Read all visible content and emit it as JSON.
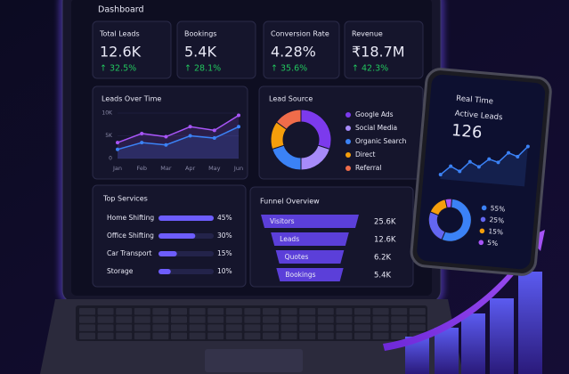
{
  "dashboard": {
    "title": "Dashboard",
    "kpis": [
      {
        "label": "Total Leads",
        "value": "12.6K",
        "change": "↑ 32.5%"
      },
      {
        "label": "Bookings",
        "value": "5.4K",
        "change": "↑ 28.1%"
      },
      {
        "label": "Conversion Rate",
        "value": "4.28%",
        "change": "↑ 35.6%"
      },
      {
        "label": "Revenue",
        "value": "₹18.7M",
        "change": "↑ 42.3%"
      }
    ],
    "leads_over_time": {
      "type": "line",
      "title": "Leads Over Time",
      "categories": [
        "Jan",
        "Feb",
        "Mar",
        "Apr",
        "May",
        "Jun"
      ],
      "series": [
        {
          "color": "#a855f7",
          "values": [
            3500,
            5500,
            4800,
            7000,
            6200,
            9500
          ]
        },
        {
          "color": "#3b82f6",
          "values": [
            2000,
            3500,
            3000,
            5000,
            4500,
            7000
          ]
        }
      ],
      "ylim": [
        0,
        10000
      ],
      "yticks": [
        0,
        {
          "value": 5000,
          "label": "5K"
        },
        {
          "value": 10000,
          "label": "10K"
        }
      ]
    },
    "lead_source": {
      "type": "pie",
      "title": "Lead Source",
      "categories": [
        "Google Ads",
        "Social Media",
        "Organic Search",
        "Direct",
        "Referral"
      ],
      "values": [
        30,
        20,
        20,
        15,
        15
      ],
      "colors": [
        "#7c3aed",
        "#a78bfa",
        "#3b82f6",
        "#f59e0b",
        "#ef6c4a"
      ]
    },
    "top_services": {
      "type": "bar",
      "title": "Top Services",
      "categories": [
        "Home Shifting",
        "Office Shifting",
        "Car Transport",
        "Storage"
      ],
      "values": [
        45,
        30,
        15,
        10
      ],
      "value_labels": [
        "45%",
        "30%",
        "15%",
        "10%"
      ],
      "color": "#6d5dfc"
    },
    "funnel": {
      "type": "funnel",
      "title": "Funnel Overview",
      "categories": [
        "Visitors",
        "Leads",
        "Quotes",
        "Bookings"
      ],
      "values": [
        25600,
        12600,
        6200,
        5400
      ],
      "value_labels": [
        "25.6K",
        "12.6K",
        "6.2K",
        "5.4K"
      ],
      "color": "#5b3fd9"
    }
  },
  "phone": {
    "title": "Real Time",
    "subtitle": "Active Leads",
    "value": "126",
    "trend": {
      "type": "line",
      "color": "#3b82f6",
      "values": [
        30,
        45,
        38,
        55,
        48,
        62,
        58,
        75,
        70,
        88
      ]
    },
    "donut": {
      "type": "pie",
      "values": [
        55,
        25,
        15,
        5
      ],
      "value_labels": [
        "55%",
        "25%",
        "15%",
        "5%"
      ],
      "colors": [
        "#3b82f6",
        "#6366f1",
        "#f59e0b",
        "#a855f7"
      ]
    }
  }
}
